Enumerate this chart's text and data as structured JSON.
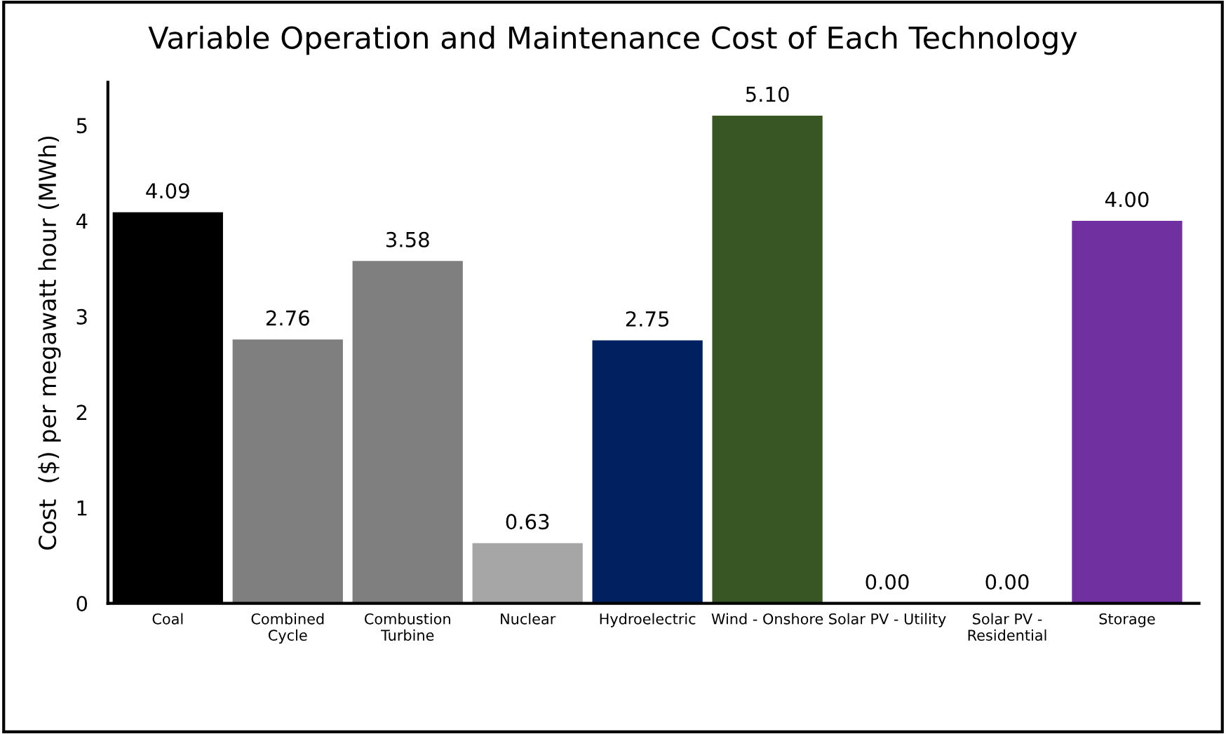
{
  "chart_data": {
    "type": "bar",
    "title": "Variable Operation and Maintenance Cost of Each Technology",
    "ylabel": "Cost  ($) per megawatt hour (MWh)",
    "categories": [
      "Coal",
      "Combined\nCycle",
      "Combustion\nTurbine",
      "Nuclear",
      "Hydroelectric",
      "Wind - Onshore",
      "Solar PV - Utility",
      "Solar PV -\nResidential",
      "Storage"
    ],
    "values": [
      4.09,
      2.76,
      3.58,
      0.63,
      2.75,
      5.1,
      0.0,
      0.0,
      4.0
    ],
    "value_labels": [
      "4.09",
      "2.76",
      "3.58",
      "0.63",
      "2.75",
      "5.10",
      "0.00",
      "0.00",
      "4.00"
    ],
    "colors": [
      "#000000",
      "#7f7f7f",
      "#7f7f7f",
      "#a6a6a6",
      "#002060",
      "#375623",
      "#ffffff",
      "#ffffff",
      "#7030a0"
    ],
    "ylim": [
      0,
      5.45
    ],
    "yticks": [
      0,
      1,
      2,
      3,
      4,
      5
    ],
    "grid": false,
    "legend": false
  }
}
